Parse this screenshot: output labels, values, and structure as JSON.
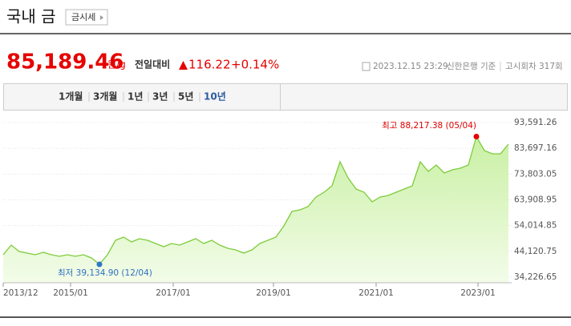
{
  "header": {
    "title": "국내 금",
    "button": "금시세"
  },
  "price": {
    "value": "85,189.46",
    "unit": "원/g",
    "change_label": "전일대비",
    "change": "116.22",
    "change_percent": "+0.14%"
  },
  "info": {
    "datetime": "2023.12.15 23:29",
    "source": "신한은행 기준",
    "round": "고시회차 317회"
  },
  "tabs": [
    "1개월",
    "3개월",
    "1년",
    "3년",
    "5년",
    "10년"
  ],
  "chart": {
    "type": "area",
    "xticks": [
      "2013/12",
      "2015/01",
      "2017/01",
      "2019/01",
      "2021/01",
      "2023/01"
    ],
    "ylim": [
      32073,
      93591.26
    ],
    "yticks": [
      {
        "value": 93591.26,
        "label": "93,591.26"
      },
      {
        "value": 83697.16,
        "label": "83,697.16"
      },
      {
        "value": 73803.05,
        "label": "73,803.05"
      },
      {
        "value": 63908.95,
        "label": "63,908.95"
      },
      {
        "value": 54014.85,
        "label": "54,014.85"
      },
      {
        "value": 44120.75,
        "label": "44,120.75"
      },
      {
        "value": 34226.65,
        "label": "34,226.65"
      }
    ],
    "color": "#7dcc3a",
    "values": [
      42840,
      46530,
      44070,
      43460,
      42840,
      43760,
      42840,
      42220,
      42840,
      42220,
      42840,
      41610,
      39134.9,
      42840,
      48380,
      49610,
      47760,
      48990,
      48380,
      47150,
      45920,
      47150,
      46530,
      47760,
      48990,
      47150,
      48380,
      46530,
      45300,
      44690,
      43460,
      44690,
      47150,
      48380,
      49610,
      53910,
      59450,
      60070,
      61300,
      64990,
      66840,
      69300,
      78520,
      72370,
      68060,
      66840,
      63140,
      64990,
      65600,
      66840,
      68060,
      69300,
      78520,
      74830,
      77290,
      74210,
      75440,
      76050,
      77290,
      88217.38,
      82830,
      81600,
      81600,
      85290
    ],
    "max_label": "최고 88,217.38 (05/04)",
    "min_label": "최저 39,134.90 (12/04)"
  }
}
